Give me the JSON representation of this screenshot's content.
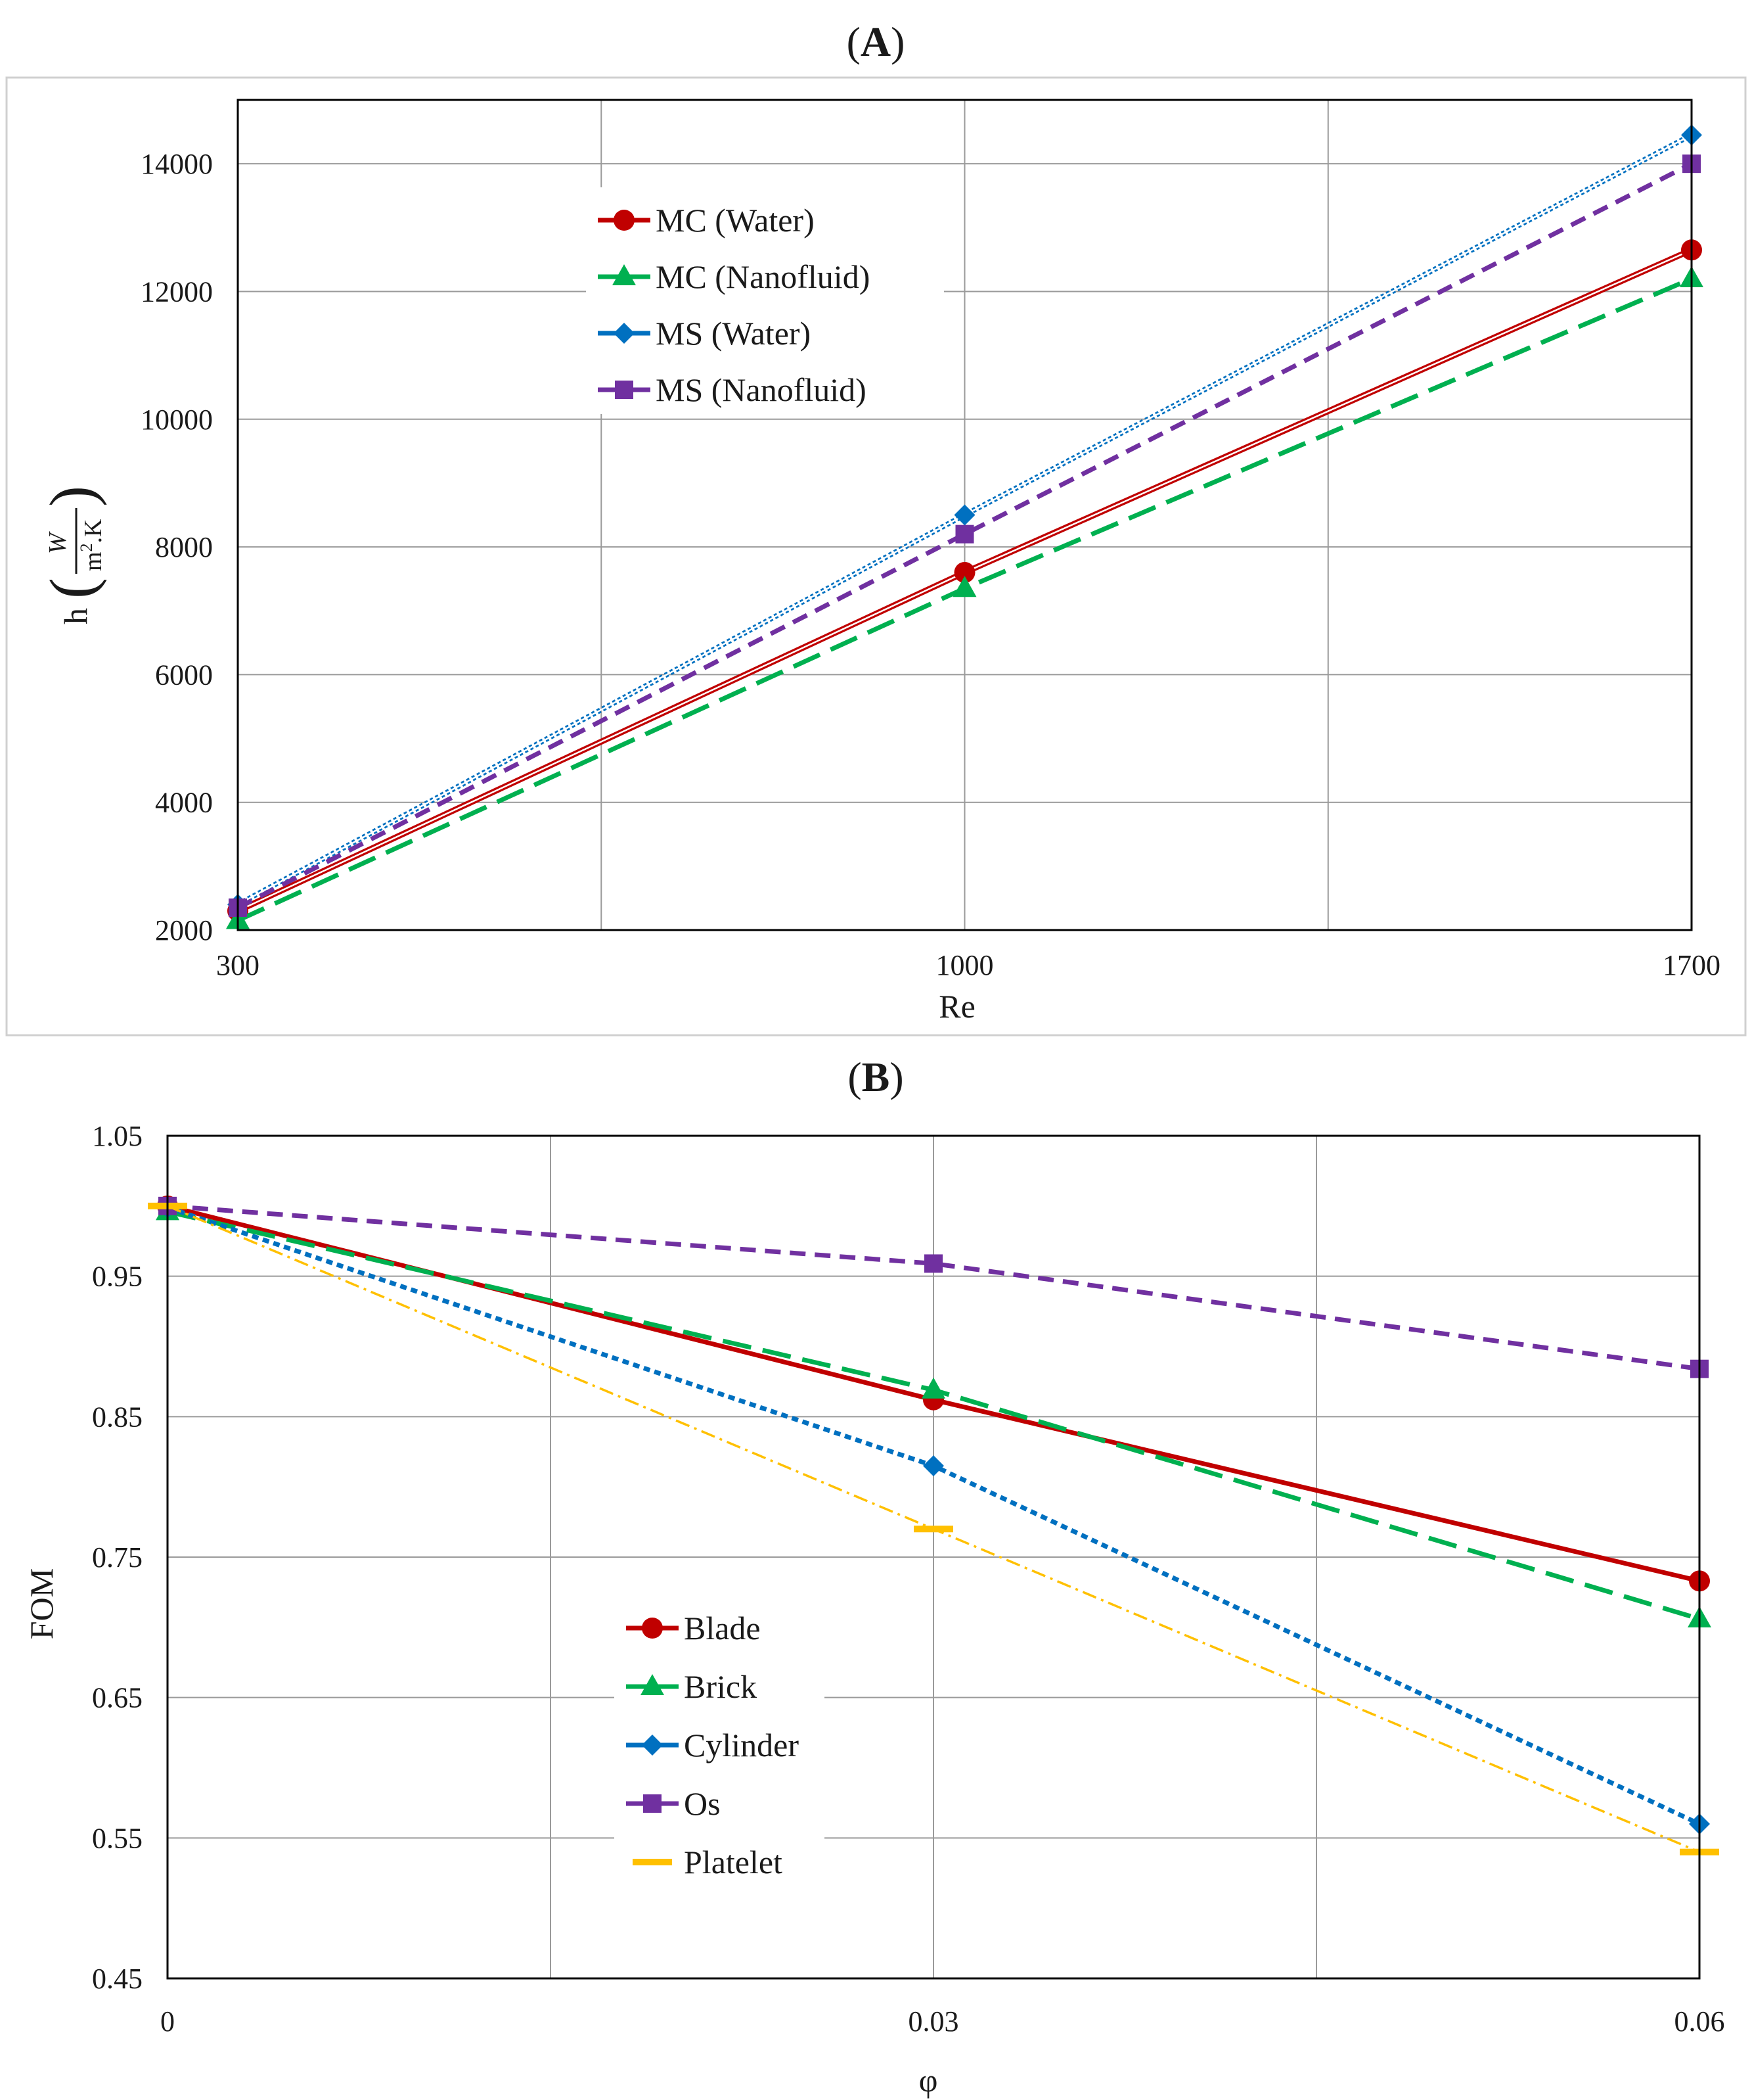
{
  "colors": {
    "red": "#c00000",
    "green": "#00b050",
    "blue": "#0070c0",
    "purple": "#7030a0",
    "orange": "#ffc000",
    "grid": "#9a9a9a",
    "frame": "#000000",
    "outer_border": "#d0d0d0"
  },
  "chart_data": [
    {
      "panel_label": "A",
      "type": "line",
      "x": [
        300,
        1000,
        1700
      ],
      "x_tick_labels": [
        "300",
        "1000",
        "1700"
      ],
      "y_tick_labels": [
        "2000",
        "4000",
        "6000",
        "8000",
        "10000",
        "12000",
        "14000"
      ],
      "xlabel": "Re",
      "ylabel": {
        "h": "h",
        "W": "W",
        "m": "m",
        "sq": "2",
        "K": ".K",
        "open": "(",
        "close": ")"
      },
      "xlim": [
        300,
        1700
      ],
      "ylim": [
        2000,
        15000
      ],
      "grid": true,
      "legend_position": "upper-left-center",
      "series": [
        {
          "name": "MC (Water)",
          "color": "red",
          "marker": "circle",
          "style": "double-solid",
          "values": [
            2300,
            7600,
            12650
          ]
        },
        {
          "name": "MC (Nanofluid)",
          "color": "green",
          "marker": "triangle",
          "style": "long-dash",
          "values": [
            2150,
            7350,
            12200
          ]
        },
        {
          "name": "MS (Water)",
          "color": "blue",
          "marker": "diamond",
          "style": "double-dotted",
          "values": [
            2400,
            8500,
            14450
          ]
        },
        {
          "name": "MS (Nanofluid)",
          "color": "purple",
          "marker": "square",
          "style": "short-dash",
          "values": [
            2350,
            8200,
            14000
          ]
        }
      ]
    },
    {
      "panel_label": "B",
      "type": "line",
      "x": [
        0,
        0.03,
        0.06
      ],
      "x_tick_labels": [
        "0",
        "0.03",
        "0.06"
      ],
      "y_tick_labels": [
        "0.45",
        "0.55",
        "0.65",
        "0.75",
        "0.85",
        "0.95",
        "1.05"
      ],
      "xlabel": "φ",
      "ylabel": "FOM",
      "xlim": [
        0,
        0.06
      ],
      "ylim": [
        0.45,
        1.05
      ],
      "grid": true,
      "legend_position": "lower-left-center",
      "series": [
        {
          "name": "Blade",
          "color": "red",
          "marker": "circle",
          "style": "solid",
          "values": [
            1.0,
            0.862,
            0.733
          ]
        },
        {
          "name": "Brick",
          "color": "green",
          "marker": "triangle",
          "style": "long-dash",
          "values": [
            0.996,
            0.869,
            0.706
          ]
        },
        {
          "name": "Cylinder",
          "color": "blue",
          "marker": "diamond",
          "style": "dotted",
          "values": [
            0.999,
            0.815,
            0.56
          ]
        },
        {
          "name": "Os",
          "color": "purple",
          "marker": "square",
          "style": "short-dash",
          "values": [
            1.0,
            0.959,
            0.884
          ]
        },
        {
          "name": "Platelet",
          "color": "orange",
          "marker": "dash",
          "style": "dash-dot",
          "values": [
            1.0,
            0.77,
            0.54
          ]
        }
      ]
    }
  ]
}
